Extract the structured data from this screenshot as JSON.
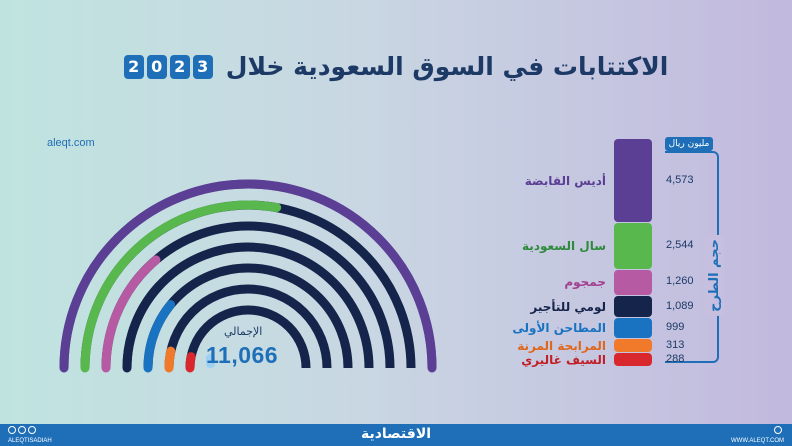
{
  "header": {
    "title": "الاكتتابات في السوق السعودية خلال",
    "year_digits": [
      "2",
      "0",
      "2",
      "3"
    ]
  },
  "site": "aleqt.com",
  "total": {
    "label": "الإجمالي",
    "value": "11,066"
  },
  "legend": {
    "unit": "مليون ريال",
    "side_label": "حجم الطرح"
  },
  "chart_data": {
    "type": "bar",
    "title": "الاكتتابات في السوق السعودية خلال 2023",
    "ylabel": "حجم الطرح",
    "unit": "مليون ريال",
    "total": 11066,
    "categories": [
      "أديس القابضة",
      "سال السعودية",
      "جمجوم",
      "لومي للتأجير",
      "المطاحن الأولى",
      "المرابحة المرنة",
      "السيف غاليري"
    ],
    "values": [
      4573,
      2544,
      1260,
      1089,
      999,
      313,
      288
    ],
    "value_labels": [
      "4,573",
      "2,544",
      "1,260",
      "1,089",
      "999",
      "313",
      "288"
    ],
    "colors": [
      "#5b3f94",
      "#59b84d",
      "#b65aa3",
      "#14244a",
      "#1a73c0",
      "#f07a2a",
      "#d9272e"
    ]
  },
  "footer": {
    "brand": "الاقتصادية",
    "handle": "ALEQTISADIAH",
    "web": "WWW.ALEQT.COM"
  }
}
